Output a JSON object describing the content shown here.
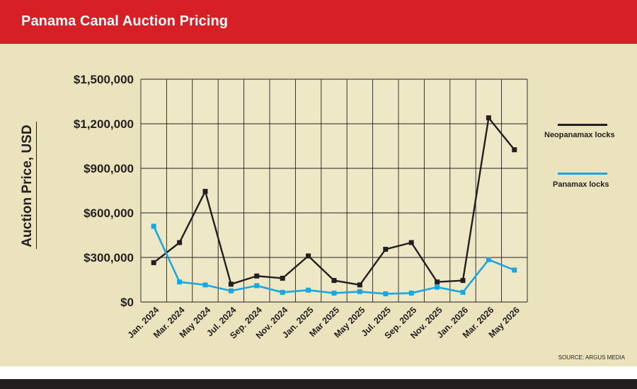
{
  "header": {
    "title": "Panama Canal Auction Pricing"
  },
  "source": "SOURCE: ARGUS MEDIA",
  "colors": {
    "header": "#d71f26",
    "panel": "#ebe3be",
    "neopanamax": "#231f20",
    "panamax": "#1aa7e1",
    "footer": "#231f20"
  },
  "chart_data": {
    "type": "line",
    "title": "Panama Canal Auction Pricing",
    "xlabel": "",
    "ylabel": "Auction Price, USD",
    "ylim": [
      0,
      1500000
    ],
    "yticks": [
      0,
      300000,
      600000,
      900000,
      1200000,
      1500000
    ],
    "ytick_labels": [
      "$0",
      "$300,000",
      "$600,000",
      "$900,000",
      "$1,200,000",
      "$1,500,000"
    ],
    "categories": [
      "Jan. 2024",
      "Mar. 2024",
      "May 2024",
      "Jul. 2024",
      "Sep. 2024",
      "Nov. 2024",
      "Jan. 2025",
      "Mar 2025",
      "May 2025",
      "Jul. 2025",
      "Sep. 2025",
      "Nov. 2025",
      "Jan. 2026",
      "Mar. 2026",
      "May 2026"
    ],
    "grid": true,
    "legend": "right",
    "series": [
      {
        "name": "Neopanamax locks",
        "color": "#231f20",
        "values": [
          265000,
          400000,
          745000,
          120000,
          175000,
          160000,
          310000,
          145000,
          115000,
          355000,
          400000,
          135000,
          145000,
          1240000,
          1025000
        ]
      },
      {
        "name": "Panamax locks",
        "color": "#1aa7e1",
        "values": [
          510000,
          135000,
          115000,
          75000,
          110000,
          65000,
          80000,
          60000,
          70000,
          55000,
          60000,
          100000,
          65000,
          285000,
          215000
        ]
      }
    ]
  }
}
